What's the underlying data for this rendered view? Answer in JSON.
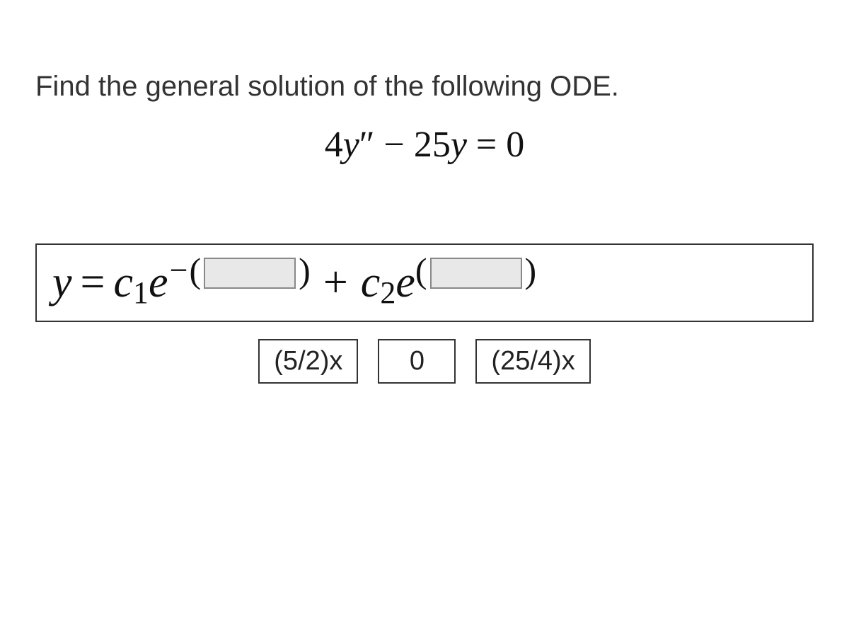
{
  "prompt": "Find the general solution of the following ODE.",
  "equation": {
    "coef1": "4",
    "var1": "y",
    "prime": "″",
    "minus": " − ",
    "coef2": "25",
    "var2": "y",
    "eq": " = ",
    "rhs": "0"
  },
  "solution": {
    "y": "y",
    "eq": "=",
    "c": "c",
    "sub1": "1",
    "e": "e",
    "minus": "−",
    "lparen": "(",
    "rparen": ")",
    "plus": "+",
    "sub2": "2"
  },
  "options": {
    "opt1": "(5/2)x",
    "opt2": "0",
    "opt3": "(25/4)x"
  },
  "style": {
    "background": "#ffffff",
    "text_color": "#333333",
    "math_color": "#111111",
    "border_color": "#333333",
    "blank_bg": "#e8e8e8",
    "blank_border": "#888888",
    "prompt_fontsize": 40,
    "equation_fontsize": 52,
    "solution_fontsize": 62,
    "option_fontsize": 38
  }
}
